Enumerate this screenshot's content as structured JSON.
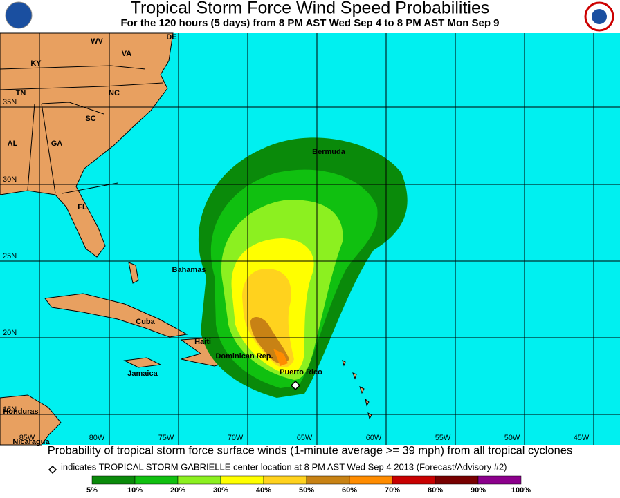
{
  "header": {
    "title": "Tropical Storm Force Wind Speed Probabilities",
    "subtitle": "For the 120 hours (5 days) from 8 PM AST Wed Sep 4 to 8 PM AST Mon Sep 9"
  },
  "map": {
    "lat_labels": [
      "35N",
      "30N",
      "25N",
      "20N",
      "15N"
    ],
    "lon_labels": [
      "85W",
      "80W",
      "75W",
      "70W",
      "65W",
      "60W",
      "55W",
      "50W",
      "45W"
    ],
    "places": [
      "KY",
      "WV",
      "VA",
      "DE",
      "TN",
      "NC",
      "SC",
      "AL",
      "GA",
      "FL",
      "Bermuda",
      "Bahamas",
      "Cuba",
      "Haiti",
      "Dominican Rep.",
      "Jamaica",
      "Puerto Rico",
      "Honduras",
      "Nicaragua"
    ]
  },
  "footer": {
    "caption": "Probability of tropical storm force surface winds (1-minute average >= 39 mph) from all tropical cyclones",
    "note": "indicates TROPICAL STORM GABRIELLE center location at 8 PM AST Wed Sep 4 2013 (Forecast/Advisory #2)"
  },
  "legend": {
    "labels": [
      "5%",
      "10%",
      "20%",
      "30%",
      "40%",
      "50%",
      "60%",
      "70%",
      "80%",
      "90%",
      "100%"
    ],
    "colors": [
      "#0a8a0a",
      "#10c010",
      "#8cf020",
      "#ffff00",
      "#ffd21e",
      "#c88214",
      "#ff8c00",
      "#c80000",
      "#780000",
      "#8c008c"
    ]
  }
}
